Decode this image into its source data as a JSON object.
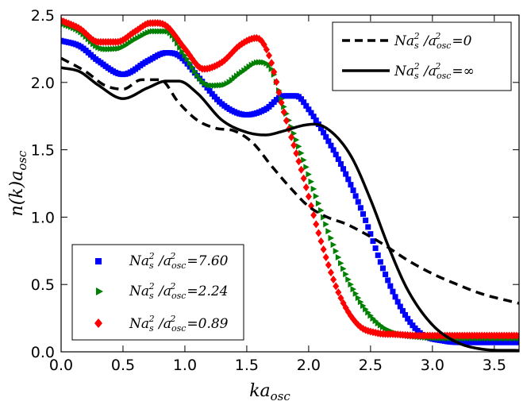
{
  "chart_data": {
    "type": "line",
    "xlabel": "ka",
    "xlabel_sub": "osc",
    "ylabel_parts": [
      "n(k)a",
      "osc"
    ],
    "xlim": [
      0.0,
      3.7
    ],
    "ylim": [
      0.0,
      2.5
    ],
    "x_ticks": [
      "0.0",
      "0.5",
      "1.0",
      "1.5",
      "2.0",
      "2.5",
      "3.0",
      "3.5"
    ],
    "y_ticks": [
      "0.0",
      "0.5",
      "1.0",
      "1.5",
      "2.0",
      "2.5"
    ],
    "x_tick_values": [
      0.0,
      0.5,
      1.0,
      1.5,
      2.0,
      2.5,
      3.0,
      3.5
    ],
    "y_tick_values": [
      0.0,
      0.5,
      1.0,
      1.5,
      2.0,
      2.5
    ],
    "legend_top_right": [
      {
        "prefix": "Na",
        "sub": "s",
        "sup": "2",
        "mid": " /a",
        "sub2": "osc",
        "sup2": "2",
        "eq": "=0",
        "style": "dashed",
        "color": "#000000"
      },
      {
        "prefix": "Na",
        "sub": "s",
        "sup": "2",
        "mid": " /a",
        "sub2": "osc",
        "sup2": "2",
        "eq": "=∞",
        "style": "solid",
        "color": "#000000"
      }
    ],
    "legend_bottom_left": [
      {
        "prefix": "Na",
        "sub": "s",
        "sup": "2",
        "mid": " /a",
        "sub2": "osc",
        "sup2": "2",
        "eq": "=7.60",
        "marker": "square",
        "color": "#0000ff"
      },
      {
        "prefix": "Na",
        "sub": "s",
        "sup": "2",
        "mid": " /a",
        "sub2": "osc",
        "sup2": "2",
        "eq": "=2.24",
        "marker": "triangle",
        "color": "#008000"
      },
      {
        "prefix": "Na",
        "sub": "s",
        "sup": "2",
        "mid": " /a",
        "sub2": "osc",
        "sup2": "2",
        "eq": "=0.89",
        "marker": "diamond",
        "color": "#ff0000"
      }
    ],
    "series": [
      {
        "name": "Na_s^2/a_osc^2=0",
        "style": "dashed",
        "color": "#000000",
        "x": [
          0.0,
          0.2,
          0.35,
          0.5,
          0.65,
          0.8,
          0.95,
          1.1,
          1.25,
          1.4,
          1.55,
          1.7,
          1.85,
          2.0,
          2.15,
          2.3,
          2.45,
          2.6,
          2.8,
          3.0,
          3.2,
          3.4,
          3.7
        ],
        "y": [
          2.18,
          2.08,
          1.98,
          1.95,
          2.02,
          2.02,
          1.85,
          1.72,
          1.66,
          1.64,
          1.55,
          1.38,
          1.22,
          1.08,
          1.0,
          0.95,
          0.88,
          0.8,
          0.68,
          0.58,
          0.5,
          0.43,
          0.36
        ]
      },
      {
        "name": "Na_s^2/a_osc^2=∞",
        "style": "solid",
        "color": "#000000",
        "x": [
          0.0,
          0.15,
          0.3,
          0.5,
          0.7,
          0.85,
          0.95,
          1.1,
          1.3,
          1.5,
          1.65,
          1.8,
          1.95,
          2.05,
          2.2,
          2.35,
          2.5,
          2.65,
          2.8,
          3.0,
          3.2,
          3.4,
          3.7
        ],
        "y": [
          2.11,
          2.08,
          1.98,
          1.88,
          1.96,
          2.01,
          2.01,
          1.92,
          1.72,
          1.63,
          1.61,
          1.64,
          1.68,
          1.69,
          1.62,
          1.44,
          1.13,
          0.77,
          0.46,
          0.2,
          0.07,
          0.02,
          0.01
        ]
      },
      {
        "name": "Na_s^2/a_osc^2=7.60",
        "marker": "square",
        "color": "#0000ff",
        "x": [
          0.0,
          0.15,
          0.3,
          0.5,
          0.7,
          0.85,
          0.95,
          1.1,
          1.3,
          1.5,
          1.65,
          1.8,
          1.9,
          2.0,
          2.15,
          2.3,
          2.45,
          2.6,
          2.75,
          2.9,
          3.1,
          3.3,
          3.7
        ],
        "y": [
          2.31,
          2.27,
          2.16,
          2.06,
          2.16,
          2.22,
          2.2,
          2.05,
          1.84,
          1.76,
          1.8,
          1.9,
          1.9,
          1.8,
          1.58,
          1.32,
          1.0,
          0.62,
          0.32,
          0.14,
          0.08,
          0.07,
          0.07
        ]
      },
      {
        "name": "Na_s^2/a_osc^2=2.24",
        "marker": "triangle",
        "color": "#008000",
        "x": [
          0.0,
          0.15,
          0.3,
          0.45,
          0.6,
          0.75,
          0.85,
          1.0,
          1.15,
          1.3,
          1.45,
          1.6,
          1.7,
          1.8,
          1.95,
          2.1,
          2.25,
          2.4,
          2.55,
          2.7,
          2.9,
          3.2,
          3.7
        ],
        "y": [
          2.44,
          2.38,
          2.26,
          2.25,
          2.32,
          2.38,
          2.38,
          2.2,
          2.0,
          1.98,
          2.07,
          2.15,
          2.1,
          1.82,
          1.45,
          1.05,
          0.68,
          0.4,
          0.22,
          0.14,
          0.11,
          0.1,
          0.1
        ]
      },
      {
        "name": "Na_s^2/a_osc^2=0.89",
        "marker": "diamond",
        "color": "#ff0000",
        "x": [
          0.0,
          0.15,
          0.3,
          0.45,
          0.6,
          0.72,
          0.85,
          1.0,
          1.15,
          1.3,
          1.45,
          1.58,
          1.68,
          1.8,
          1.95,
          2.1,
          2.25,
          2.4,
          2.55,
          2.7,
          2.9,
          3.2,
          3.7
        ],
        "y": [
          2.46,
          2.4,
          2.3,
          2.3,
          2.38,
          2.44,
          2.42,
          2.25,
          2.1,
          2.15,
          2.28,
          2.33,
          2.2,
          1.78,
          1.32,
          0.82,
          0.42,
          0.2,
          0.14,
          0.13,
          0.12,
          0.12,
          0.12
        ]
      }
    ]
  }
}
